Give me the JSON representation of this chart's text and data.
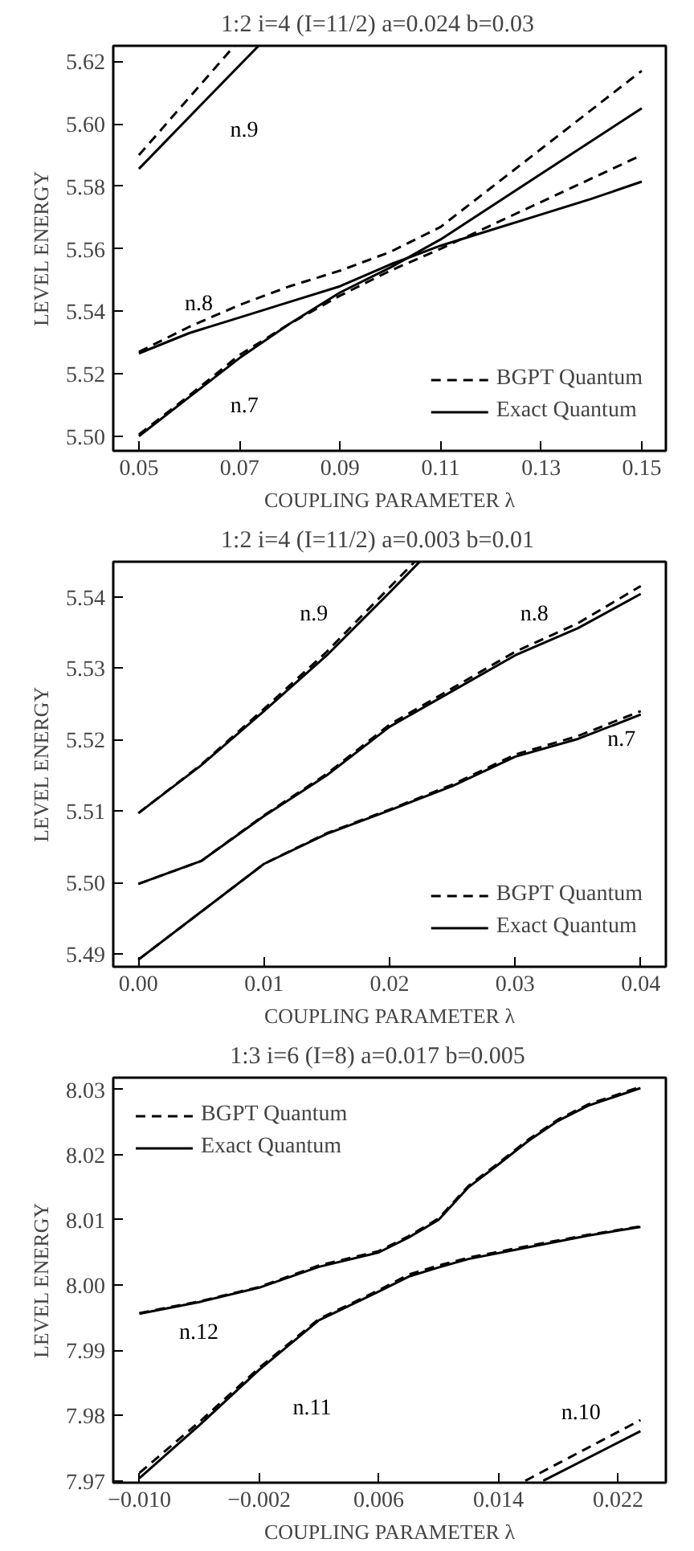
{
  "chart_data": [
    {
      "type": "line",
      "title": "1:2  i=4  (I=11/2)  a=0.024  b=0.03",
      "xlabel": "COUPLING PARAMETER λ",
      "ylabel": "LEVEL ENERGY",
      "xlim": [
        0.0449,
        0.1548
      ],
      "ylim": [
        5.4953,
        5.625
      ],
      "xticks": [
        {
          "value": 0.05,
          "label": "0.05"
        },
        {
          "value": 0.07,
          "label": "0.07"
        },
        {
          "value": 0.09,
          "label": "0.09"
        },
        {
          "value": 0.11,
          "label": "0.11"
        },
        {
          "value": 0.13,
          "label": "0.13"
        },
        {
          "value": 0.15,
          "label": "0.15"
        }
      ],
      "yticks": [
        {
          "value": 5.5,
          "label": "5.50"
        },
        {
          "value": 5.52,
          "label": "5.52"
        },
        {
          "value": 5.54,
          "label": "5.54"
        },
        {
          "value": 5.56,
          "label": "5.56"
        },
        {
          "value": 5.58,
          "label": "5.58"
        },
        {
          "value": 5.6,
          "label": "5.60"
        },
        {
          "value": 5.62,
          "label": "5.62"
        }
      ],
      "grid": false,
      "legend": "bottom right",
      "series": [
        {
          "name": "BGPT Quantum",
          "color": "#000000",
          "line_style": "dashed",
          "x": [
            0.05,
            0.069
          ],
          "values": [
            5.59,
            5.625
          ]
        },
        {
          "name": "Exact Quantum",
          "color": "#000000",
          "line_style": "solid",
          "x": [
            0.05,
            0.062,
            0.0738
          ],
          "values": [
            5.5856,
            5.6055,
            5.625
          ]
        },
        {
          "color": "#000000",
          "line_style": "dashed",
          "x": [
            0.05,
            0.06,
            0.07,
            0.08,
            0.09,
            0.1,
            0.11,
            0.13,
            0.15
          ],
          "values": [
            5.527,
            5.535,
            5.542,
            5.548,
            5.553,
            5.559,
            5.567,
            5.592,
            5.617
          ]
        },
        {
          "color": "#000000",
          "line_style": "solid",
          "x": [
            0.05,
            0.06,
            0.07,
            0.08,
            0.09,
            0.1,
            0.11,
            0.12,
            0.13,
            0.14,
            0.15
          ],
          "values": [
            5.5265,
            5.533,
            5.538,
            5.543,
            5.548,
            5.555,
            5.561,
            5.566,
            5.571,
            5.576,
            5.5815
          ]
        },
        {
          "color": "#000000",
          "line_style": "dashed",
          "x": [
            0.05,
            0.06,
            0.07,
            0.08,
            0.09,
            0.1,
            0.11,
            0.13,
            0.15
          ],
          "values": [
            5.5005,
            5.513,
            5.526,
            5.536,
            5.545,
            5.553,
            5.56,
            5.575,
            5.59
          ]
        },
        {
          "color": "#000000",
          "line_style": "solid",
          "x": [
            0.05,
            0.06,
            0.07,
            0.08,
            0.09,
            0.1,
            0.11,
            0.13,
            0.15
          ],
          "values": [
            5.5,
            5.5125,
            5.525,
            5.536,
            5.546,
            5.554,
            5.563,
            5.584,
            5.605
          ]
        }
      ],
      "annotations": [
        {
          "text": "n.9",
          "x": 0.062,
          "y": 5.6055
        },
        {
          "text": "n.8",
          "x": 0.06,
          "y": 5.533
        },
        {
          "text": "n.7",
          "x": 0.07,
          "y": 5.525
        }
      ]
    },
    {
      "type": "line",
      "title": "1:2  i=4  (I=11/2)  a=0.003  b=0.01",
      "xlabel": "COUPLING PARAMETER λ",
      "ylabel": "LEVEL ENERGY",
      "xlim": [
        -0.002,
        0.042
      ],
      "ylim": [
        5.4882,
        5.5449
      ],
      "xticks": [
        {
          "value": 0,
          "label": "0.00"
        },
        {
          "value": 0.01,
          "label": "0.01"
        },
        {
          "value": 0.02,
          "label": "0.02"
        },
        {
          "value": 0.03,
          "label": "0.03"
        },
        {
          "value": 0.04,
          "label": "0.04"
        }
      ],
      "yticks": [
        {
          "value": 5.49,
          "label": "5.49"
        },
        {
          "value": 5.5,
          "label": "5.50"
        },
        {
          "value": 5.51,
          "label": "5.51"
        },
        {
          "value": 5.52,
          "label": "5.52"
        },
        {
          "value": 5.53,
          "label": "5.53"
        },
        {
          "value": 5.54,
          "label": "5.54"
        }
      ],
      "grid": false,
      "legend": "bottom right",
      "series": [
        {
          "name": "BGPT Quantum",
          "color": "#000000",
          "line_style": "dashed",
          "x": [
            0,
            0.005,
            0.01,
            0.015,
            0.02,
            0.022
          ],
          "values": [
            5.5097,
            5.5165,
            5.5243,
            5.5323,
            5.5413,
            5.5449
          ]
        },
        {
          "name": "Exact Quantum",
          "color": "#000000",
          "line_style": "solid",
          "x": [
            0,
            0.005,
            0.01,
            0.015,
            0.02,
            0.0224
          ],
          "values": [
            5.5097,
            5.5164,
            5.524,
            5.5318,
            5.5406,
            5.5449
          ]
        },
        {
          "color": "#000000",
          "line_style": "dashed",
          "x": [
            0,
            0.005,
            0.01,
            0.015,
            0.02,
            0.025,
            0.03,
            0.035,
            0.04
          ],
          "values": [
            5.4998,
            5.503,
            5.5094,
            5.5152,
            5.5221,
            5.5272,
            5.5323,
            5.5363,
            5.5415
          ]
        },
        {
          "color": "#000000",
          "line_style": "solid",
          "x": [
            0,
            0.005,
            0.01,
            0.015,
            0.02,
            0.025,
            0.03,
            0.035,
            0.04
          ],
          "values": [
            5.4998,
            5.503,
            5.5093,
            5.515,
            5.5218,
            5.5268,
            5.5318,
            5.5356,
            5.5404
          ]
        },
        {
          "color": "#000000",
          "line_style": "dashed",
          "x": [
            0,
            0.005,
            0.01,
            0.015,
            0.02,
            0.025,
            0.03,
            0.035,
            0.04
          ],
          "values": [
            5.4892,
            5.4959,
            5.5026,
            5.5069,
            5.5102,
            5.5137,
            5.5179,
            5.5205,
            5.524
          ]
        },
        {
          "color": "#000000",
          "line_style": "solid",
          "x": [
            0,
            0.005,
            0.01,
            0.015,
            0.02,
            0.025,
            0.03,
            0.035,
            0.04
          ],
          "values": [
            5.4892,
            5.4959,
            5.5026,
            5.5068,
            5.5101,
            5.5135,
            5.5176,
            5.5201,
            5.5235
          ]
        }
      ],
      "annotations": [
        {
          "text": "n.9",
          "x": 0.015,
          "y": 5.5318
        },
        {
          "text": "n.8",
          "x": 0.03,
          "y": 5.5318
        },
        {
          "text": "n.7",
          "x": 0.04,
          "y": 5.5235
        }
      ]
    },
    {
      "type": "line",
      "title": "1:3  i=6  (I=8)  a=0.017  b=0.005",
      "xlabel": "COUPLING PARAMETER λ",
      "ylabel": "LEVEL ENERGY",
      "xlim": [
        -0.01175,
        0.0252
      ],
      "ylim": [
        7.9697,
        8.0318
      ],
      "xticks": [
        {
          "value": -0.01,
          "label": "−0.010"
        },
        {
          "value": -0.002,
          "label": "−0.002"
        },
        {
          "value": 0.006,
          "label": "0.006"
        },
        {
          "value": 0.014,
          "label": "0.014"
        },
        {
          "value": 0.022,
          "label": "0.022"
        }
      ],
      "yticks": [
        {
          "value": 7.97,
          "label": "7.97"
        },
        {
          "value": 7.98,
          "label": "7.98"
        },
        {
          "value": 7.99,
          "label": "7.99"
        },
        {
          "value": 8.0,
          "label": "8.00"
        },
        {
          "value": 8.01,
          "label": "8.01"
        },
        {
          "value": 8.02,
          "label": "8.02"
        },
        {
          "value": 8.03,
          "label": "8.03"
        }
      ],
      "grid": false,
      "legend": "top left",
      "series": [
        {
          "name": "BGPT Quantum",
          "color": "#000000",
          "line_style": "dashed",
          "x": [
            -0.01,
            -0.006,
            -0.002,
            0.002,
            0.006,
            0.008,
            0.01,
            0.012,
            0.016,
            0.02,
            0.0235
          ],
          "values": [
            7.9712,
            7.979,
            7.9873,
            7.9948,
            7.9992,
            8.0016,
            8.003,
            8.0042,
            8.006,
            8.0077,
            8.009
          ]
        },
        {
          "name": "Exact Quantum",
          "color": "#000000",
          "line_style": "solid",
          "x": [
            -0.01,
            -0.006,
            -0.002,
            0.002,
            0.006,
            0.008,
            0.01,
            0.012,
            0.016,
            0.02,
            0.0235
          ],
          "values": [
            7.9704,
            7.9785,
            7.987,
            7.9946,
            7.999,
            8.0013,
            8.0027,
            8.004,
            8.0058,
            8.0076,
            8.0089
          ]
        },
        {
          "color": "#000000",
          "line_style": "dashed",
          "x": [
            -0.01,
            -0.006,
            -0.002,
            0.002,
            0.006,
            0.008,
            0.01,
            0.012,
            0.014,
            0.016,
            0.018,
            0.02,
            0.0235
          ],
          "values": [
            7.9957,
            7.9975,
            7.9997,
            8.003,
            8.0052,
            8.0075,
            8.0102,
            8.0152,
            8.0187,
            8.0223,
            8.0254,
            8.0277,
            8.0304
          ]
        },
        {
          "color": "#000000",
          "line_style": "solid",
          "x": [
            -0.01,
            -0.006,
            -0.002,
            0.002,
            0.006,
            0.008,
            0.01,
            0.012,
            0.014,
            0.016,
            0.018,
            0.02,
            0.0235
          ],
          "values": [
            7.9956,
            7.9974,
            7.9996,
            8.0028,
            8.005,
            8.0073,
            8.01,
            8.015,
            8.0185,
            8.0221,
            8.0252,
            8.0275,
            8.0302
          ]
        },
        {
          "color": "#000000",
          "line_style": "dashed",
          "x": [
            0.0158,
            0.0235
          ],
          "values": [
            7.97,
            7.9793
          ]
        },
        {
          "color": "#000000",
          "line_style": "solid",
          "x": [
            0.017,
            0.0235
          ],
          "values": [
            7.97,
            7.9776
          ]
        }
      ],
      "annotations": [
        {
          "text": "n.12",
          "x": -0.01,
          "y": 7.9956
        },
        {
          "text": "n.11",
          "x": -0.002,
          "y": 7.987
        },
        {
          "text": "n.10",
          "x": 0.0235,
          "y": 7.9776
        }
      ]
    }
  ]
}
